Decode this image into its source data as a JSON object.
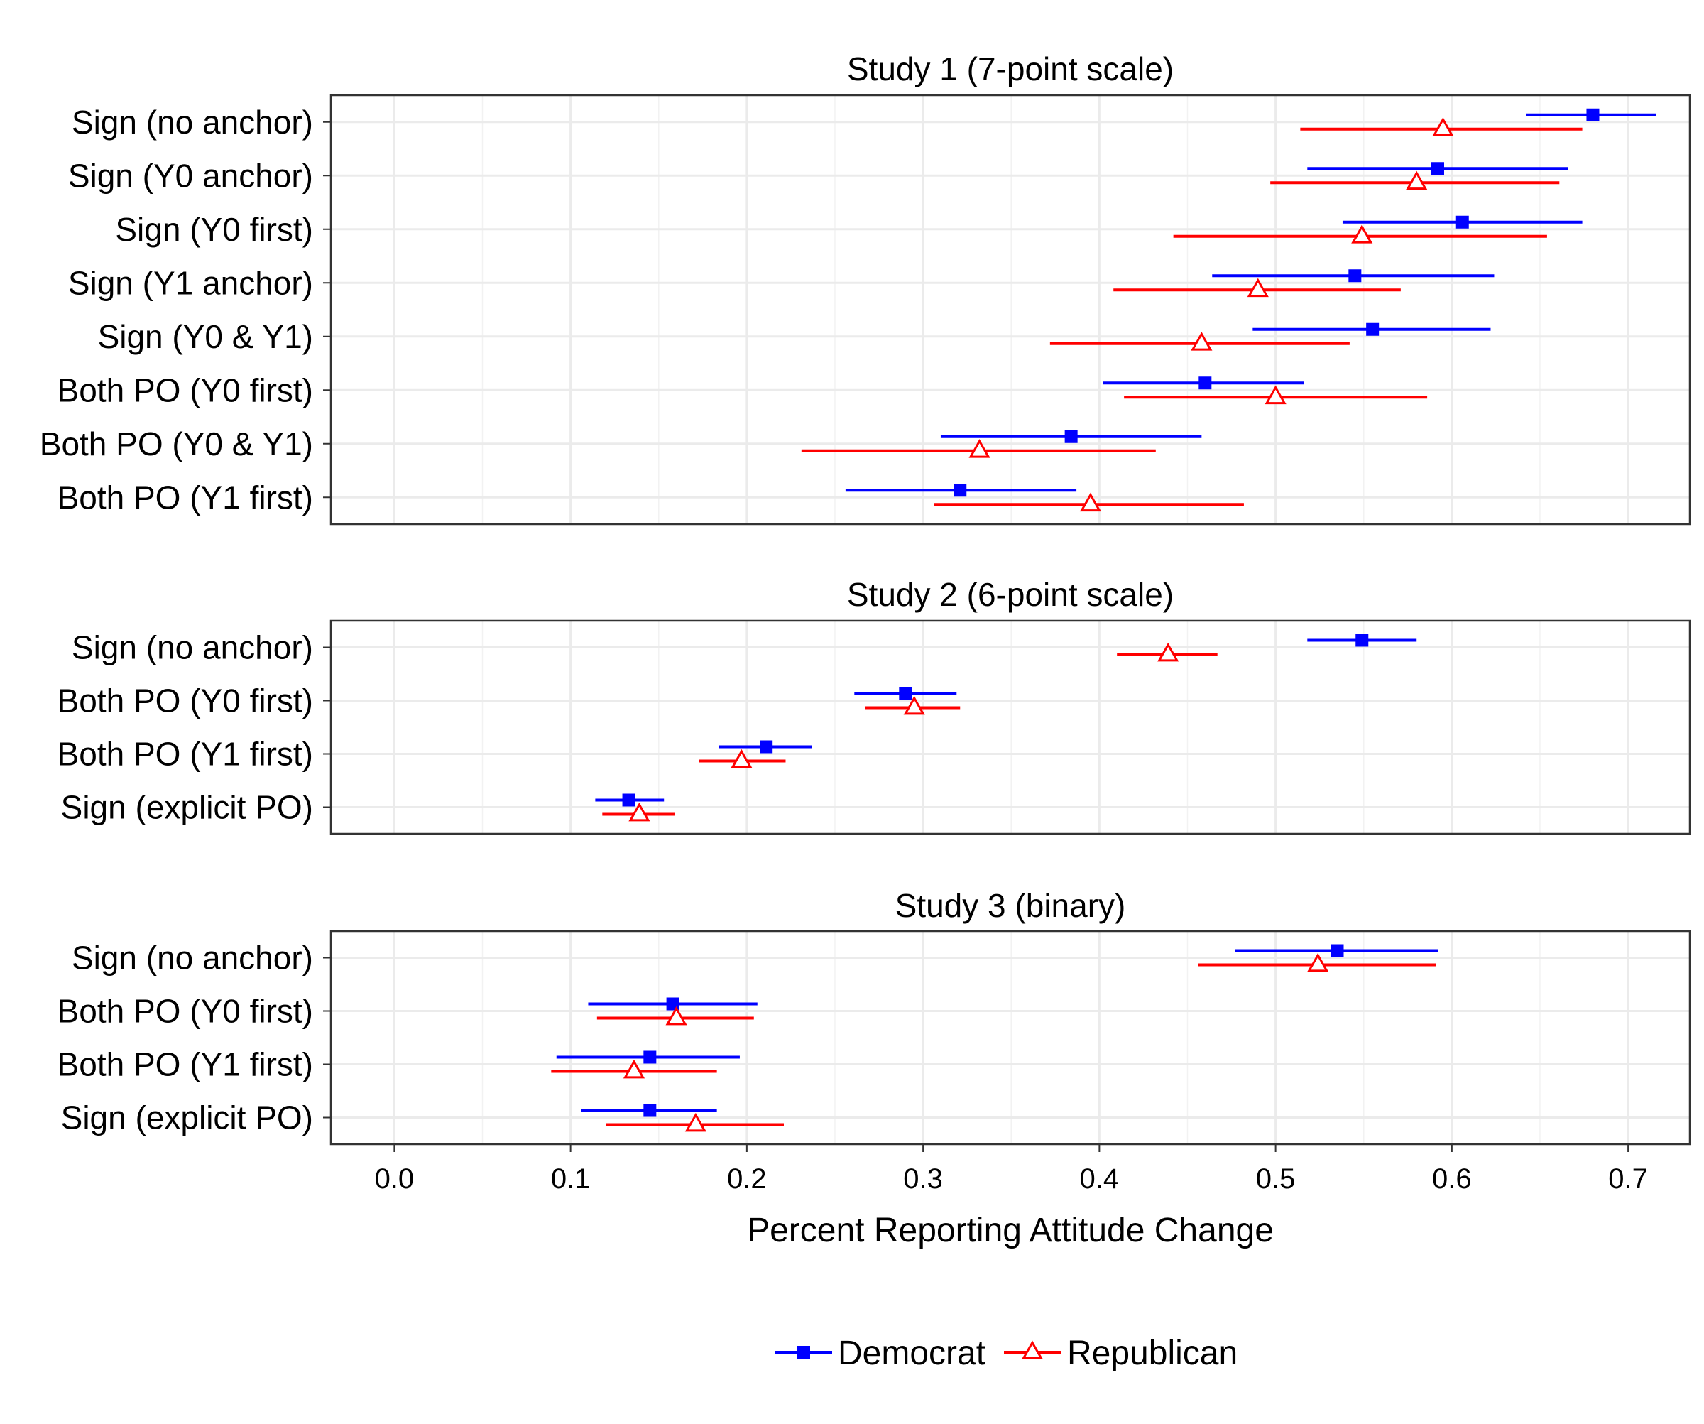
{
  "chart_data": {
    "type": "dot-errorbar",
    "xlabel": "Percent Reporting Attitude Change",
    "xlim": [
      -0.036,
      0.735
    ],
    "xticks": [
      0.0,
      0.1,
      0.2,
      0.3,
      0.4,
      0.5,
      0.6,
      0.7
    ],
    "xtick_labels": [
      "0.0",
      "0.1",
      "0.2",
      "0.3",
      "0.4",
      "0.5",
      "0.6",
      "0.7"
    ],
    "grid": true,
    "legend_position": "bottom",
    "series_styles": [
      {
        "name": "Democrat",
        "color": "#0000ff",
        "marker": "filled-square"
      },
      {
        "name": "Republican",
        "color": "#ff0000",
        "marker": "open-triangle"
      }
    ],
    "panels": [
      {
        "title": "Study 1 (7-point scale)",
        "categories": [
          "Sign (no anchor)",
          "Sign (Y0 anchor)",
          "Sign (Y0 first)",
          "Sign (Y1 anchor)",
          "Sign (Y0 & Y1)",
          "Both PO (Y0 first)",
          "Both PO (Y0 & Y1)",
          "Both PO (Y1 first)"
        ],
        "series": [
          {
            "name": "Democrat",
            "values": [
              0.68,
              0.592,
              0.606,
              0.545,
              0.555,
              0.46,
              0.384,
              0.321
            ],
            "ci_low": [
              0.642,
              0.518,
              0.538,
              0.464,
              0.487,
              0.402,
              0.31,
              0.256
            ],
            "ci_high": [
              0.716,
              0.666,
              0.674,
              0.624,
              0.622,
              0.516,
              0.458,
              0.387
            ]
          },
          {
            "name": "Republican",
            "values": [
              0.595,
              0.58,
              0.549,
              0.49,
              0.458,
              0.5,
              0.332,
              0.395
            ],
            "ci_low": [
              0.514,
              0.497,
              0.442,
              0.408,
              0.372,
              0.414,
              0.231,
              0.306
            ],
            "ci_high": [
              0.674,
              0.661,
              0.654,
              0.571,
              0.542,
              0.586,
              0.432,
              0.482
            ]
          }
        ]
      },
      {
        "title": "Study 2 (6-point scale)",
        "categories": [
          "Sign (no anchor)",
          "Both PO (Y0 first)",
          "Both PO (Y1 first)",
          "Sign (explicit PO)"
        ],
        "series": [
          {
            "name": "Democrat",
            "values": [
              0.549,
              0.29,
              0.211,
              0.133
            ],
            "ci_low": [
              0.518,
              0.261,
              0.184,
              0.114
            ],
            "ci_high": [
              0.58,
              0.319,
              0.237,
              0.153
            ]
          },
          {
            "name": "Republican",
            "values": [
              0.439,
              0.295,
              0.197,
              0.139
            ],
            "ci_low": [
              0.41,
              0.267,
              0.173,
              0.118
            ],
            "ci_high": [
              0.467,
              0.321,
              0.222,
              0.159
            ]
          }
        ]
      },
      {
        "title": "Study 3 (binary)",
        "categories": [
          "Sign (no anchor)",
          "Both PO (Y0 first)",
          "Both PO (Y1 first)",
          "Sign (explicit PO)"
        ],
        "series": [
          {
            "name": "Democrat",
            "values": [
              0.535,
              0.158,
              0.145,
              0.145
            ],
            "ci_low": [
              0.477,
              0.11,
              0.092,
              0.106
            ],
            "ci_high": [
              0.592,
              0.206,
              0.196,
              0.183
            ]
          },
          {
            "name": "Republican",
            "values": [
              0.524,
              0.16,
              0.136,
              0.171
            ],
            "ci_low": [
              0.456,
              0.115,
              0.089,
              0.12
            ],
            "ci_high": [
              0.591,
              0.204,
              0.183,
              0.221
            ]
          }
        ]
      }
    ]
  }
}
